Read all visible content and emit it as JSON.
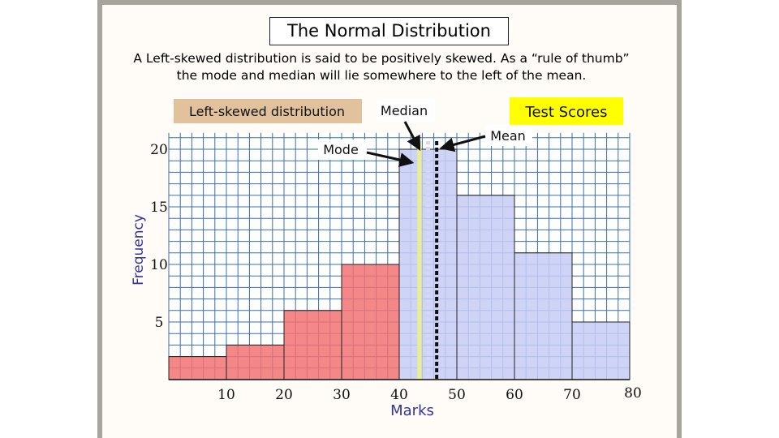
{
  "slide": {
    "title": "The Normal Distribution",
    "caption": "A Left-skewed distribution is said to be positively skewed. As a “rule of thumb” the mode and median will lie somewhere to the left of the mean."
  },
  "colors": {
    "frame": "#a8a39b",
    "background": "#fffcf7",
    "grid": "#3a70a8",
    "left_bars": "#f27272",
    "right_bars": "#c7cdf4",
    "label_tag": "#e2c29c",
    "legend_highlight": "#ffff00",
    "median_line": "#e9ef8c",
    "mode_line": "#d4d8f6",
    "mean_line": "#111111"
  },
  "chart_data": {
    "type": "bar",
    "title": "Test Scores",
    "xlabel": "Marks",
    "ylabel": "Frequency",
    "tag_label": "Left-skewed distribution",
    "bins": [
      {
        "from": 0,
        "to": 10,
        "value": 2,
        "color": "left"
      },
      {
        "from": 10,
        "to": 20,
        "value": 3,
        "color": "left"
      },
      {
        "from": 20,
        "to": 30,
        "value": 6,
        "color": "left"
      },
      {
        "from": 30,
        "to": 40,
        "value": 10,
        "color": "left"
      },
      {
        "from": 40,
        "to": 50,
        "value": 20,
        "color": "right"
      },
      {
        "from": 50,
        "to": 60,
        "value": 16,
        "color": "right"
      },
      {
        "from": 60,
        "to": 70,
        "value": 11,
        "color": "right"
      },
      {
        "from": 70,
        "to": 80,
        "value": 5,
        "color": "right"
      }
    ],
    "x_ticks": [
      10,
      20,
      30,
      40,
      50,
      60,
      70,
      80
    ],
    "y_ticks": [
      5,
      10,
      15,
      20
    ],
    "xlim": [
      0,
      80
    ],
    "ylim": [
      0,
      21
    ],
    "grid": true,
    "annotations": [
      {
        "label": "Mode",
        "x": 44
      },
      {
        "label": "Median",
        "x": 45
      },
      {
        "label": "Mean",
        "x": 46.5
      }
    ]
  }
}
